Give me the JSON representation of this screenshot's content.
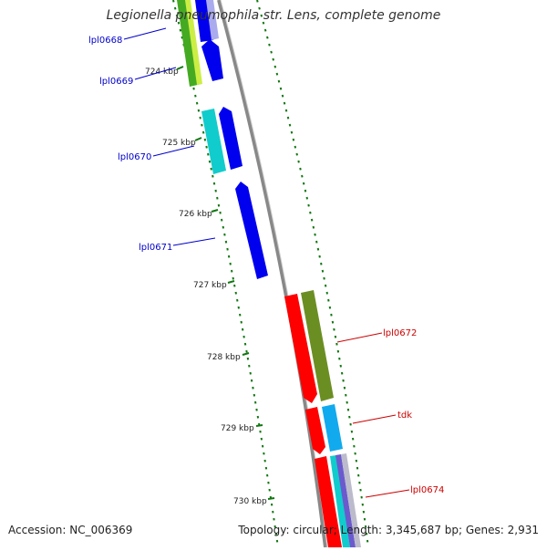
{
  "title": "Legionella pneumophila str. Lens, complete genome",
  "footer": {
    "accession": "Accession: NC_006369",
    "summary": "Topology: circular; Length: 3,345,687 bp; Genes: 2,931"
  },
  "scale_ticks": [
    "724 kbp",
    "725 kbp",
    "726 kbp",
    "727 kbp",
    "728 kbp",
    "729 kbp",
    "730 kbp"
  ],
  "genes": [
    {
      "name": "lpl0668",
      "color": "#0000cc"
    },
    {
      "name": "lpl0669",
      "color": "#0000cc"
    },
    {
      "name": "lpl0670",
      "color": "#0000cc"
    },
    {
      "name": "lpl0671",
      "color": "#0000cc"
    },
    {
      "name": "lpl0672",
      "color": "#cc0000"
    },
    {
      "name": "tdk",
      "color": "#cc0000"
    },
    {
      "name": "lpl0674",
      "color": "#cc0000"
    }
  ],
  "colors": {
    "backbone": "#888888",
    "tick": "#117711",
    "forward_gene": "#0000ee",
    "reverse_gene": "#ff0000",
    "cog_cyan": "#11cccc",
    "cog_olive": "#6b8e23",
    "cog_green": "#44aa22",
    "cog_lightblue": "#11aaee"
  }
}
